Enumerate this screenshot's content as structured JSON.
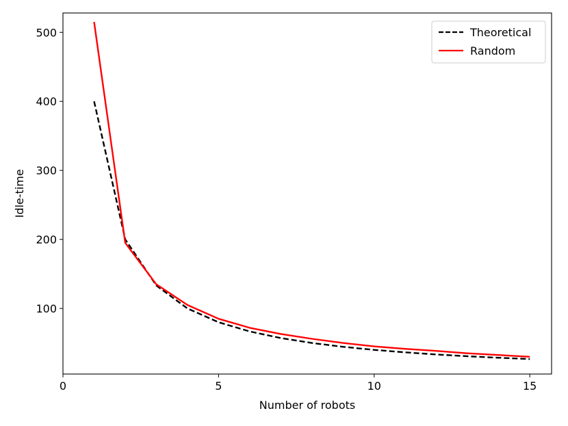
{
  "chart_data": {
    "type": "line",
    "xlabel": "Number of robots",
    "ylabel": "Idle-time",
    "xlim": [
      0,
      15.7
    ],
    "ylim": [
      5,
      528
    ],
    "x_ticks": [
      0,
      5,
      10,
      15
    ],
    "y_ticks": [
      100,
      200,
      300,
      400,
      500
    ],
    "grid": false,
    "legend_position": "top-right",
    "x": [
      1,
      2,
      3,
      4,
      5,
      6,
      7,
      8,
      9,
      10,
      11,
      12,
      13,
      14,
      15
    ],
    "series": [
      {
        "name": "Theoretical",
        "style": "dashed",
        "color": "#000000",
        "values": [
          400,
          200,
          133.3,
          100,
          80,
          66.7,
          57.1,
          50,
          44.4,
          40,
          36.4,
          33.3,
          30.8,
          28.6,
          26.7
        ]
      },
      {
        "name": "Random",
        "style": "solid",
        "color": "#ff0000",
        "values": [
          515,
          195,
          135,
          105,
          85,
          72,
          63,
          56,
          50,
          45,
          41.5,
          38.5,
          35,
          32.5,
          30
        ]
      }
    ]
  }
}
